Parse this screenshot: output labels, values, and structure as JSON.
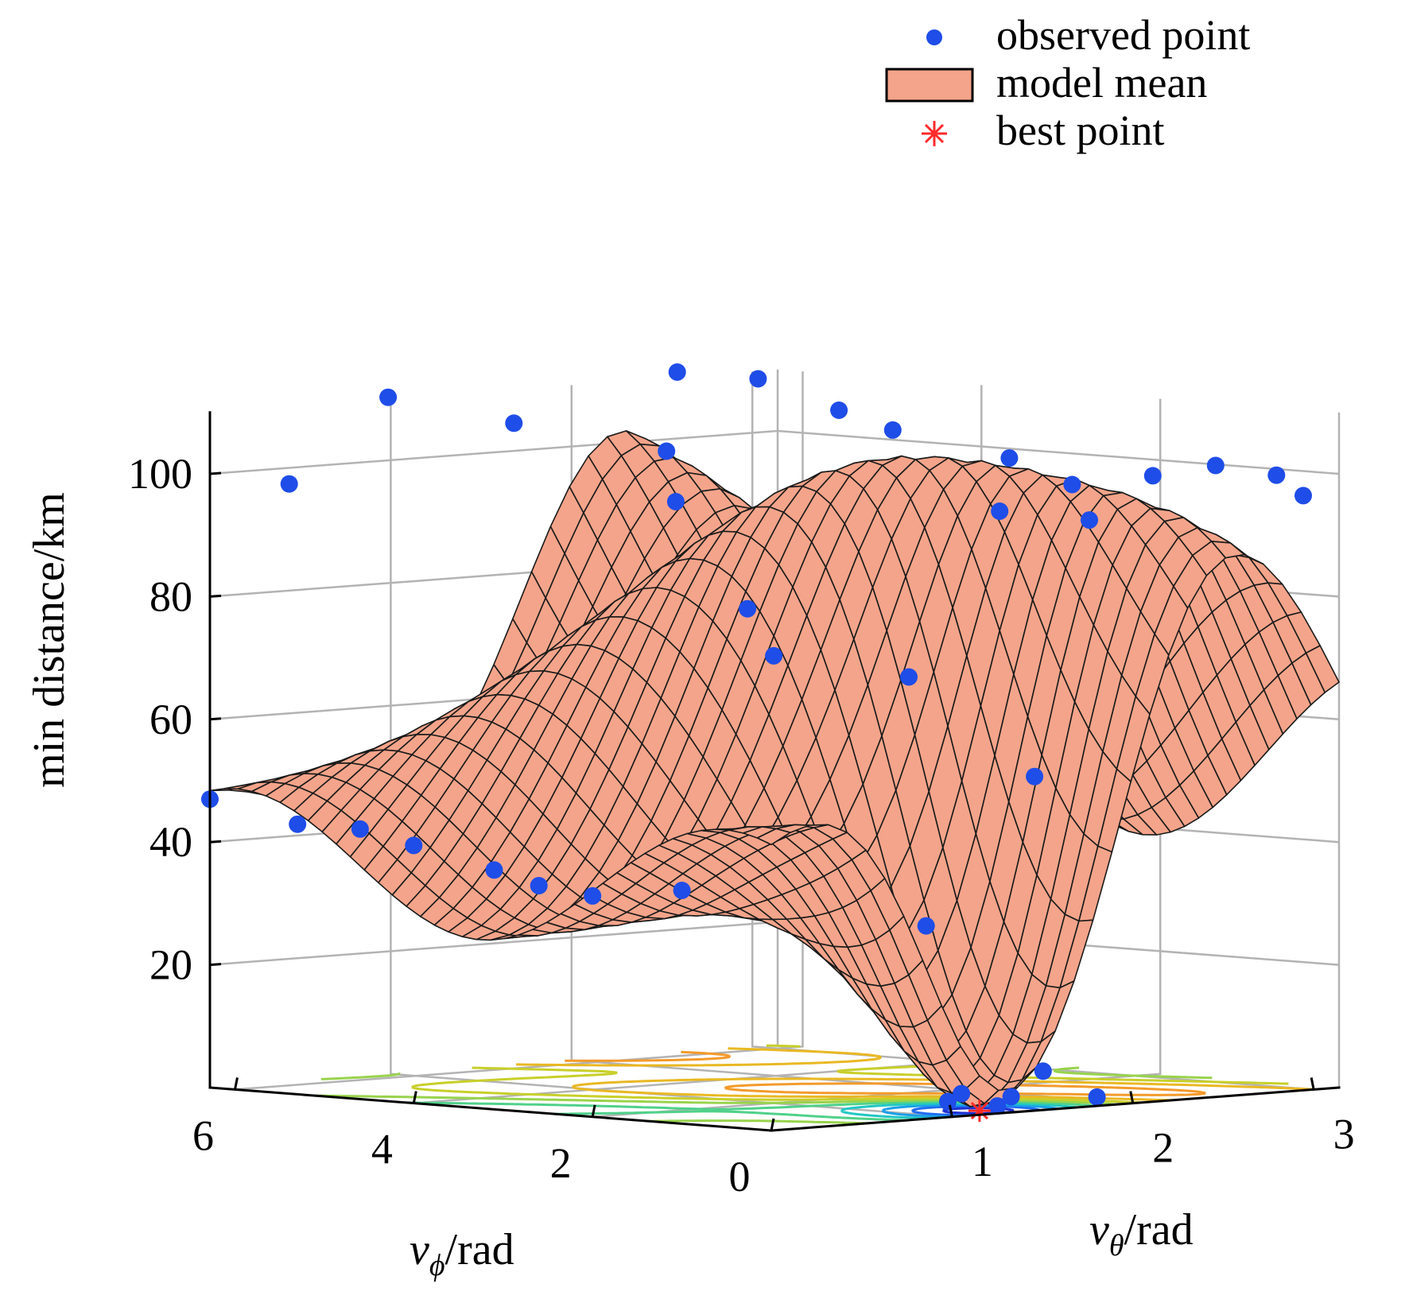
{
  "chart_data": {
    "type": "surface3d",
    "zlabel": "min distance/km",
    "xlabel_var": "v",
    "xlabel_sub": "θ",
    "xlabel_unit": "/rad",
    "ylabel_var": "v",
    "ylabel_sub": "ϕ",
    "ylabel_unit": "/rad",
    "xlim": [
      0,
      3.14
    ],
    "ylim": [
      0,
      6.28
    ],
    "zlim": [
      0,
      110
    ],
    "x_ticks": [
      "1",
      "2",
      "3"
    ],
    "y_ticks": [
      "0",
      "2",
      "4",
      "6"
    ],
    "z_ticks": [
      "20",
      "40",
      "60",
      "80",
      "100"
    ],
    "grid": true,
    "legend_position": "top-right",
    "legend": {
      "observed": "observed point",
      "mean": "model mean",
      "best": "best point"
    },
    "colors": {
      "surface": "#f4a48a",
      "mesh": "#1a1a1a",
      "observed": "#1f4de8",
      "best": "#ff2a2a",
      "grid": "#b3b3b3"
    },
    "observed_points": [
      [
        0.0,
        6.28,
        47
      ],
      [
        0.0,
        5.3,
        44
      ],
      [
        0.0,
        4.6,
        44
      ],
      [
        0.0,
        4.0,
        42
      ],
      [
        0.0,
        3.1,
        39
      ],
      [
        0.0,
        2.6,
        37
      ],
      [
        0.0,
        2.0,
        36
      ],
      [
        0.0,
        1.0,
        38
      ],
      [
        0.3,
        6.0,
        98
      ],
      [
        0.6,
        5.5,
        112
      ],
      [
        0.9,
        4.7,
        108
      ],
      [
        1.2,
        3.6,
        104
      ],
      [
        1.4,
        3.9,
        95
      ],
      [
        1.5,
        3.3,
        78
      ],
      [
        1.2,
        2.4,
        72
      ],
      [
        1.7,
        1.9,
        68
      ],
      [
        1.4,
        1.1,
        29
      ],
      [
        2.1,
        5.3,
        113
      ],
      [
        2.3,
        4.8,
        112
      ],
      [
        2.5,
        4.3,
        107
      ],
      [
        2.6,
        3.9,
        104
      ],
      [
        2.8,
        3.0,
        100
      ],
      [
        2.9,
        2.5,
        96
      ],
      [
        3.0,
        1.8,
        98
      ],
      [
        3.1,
        1.3,
        100
      ],
      [
        3.14,
        0.7,
        99
      ],
      [
        3.14,
        0.4,
        96
      ],
      [
        2.4,
        2.3,
        93
      ],
      [
        2.55,
        1.6,
        92
      ],
      [
        2.0,
        1.1,
        52
      ],
      [
        1.8,
        0.6,
        5
      ],
      [
        1.9,
        0.2,
        1
      ],
      [
        1.2,
        0.3,
        3
      ],
      [
        1.1,
        0.25,
        2
      ],
      [
        1.45,
        0.25,
        2
      ],
      [
        1.3,
        0.1,
        1
      ]
    ],
    "best_point": [
      1.3,
      0.3,
      0
    ]
  }
}
